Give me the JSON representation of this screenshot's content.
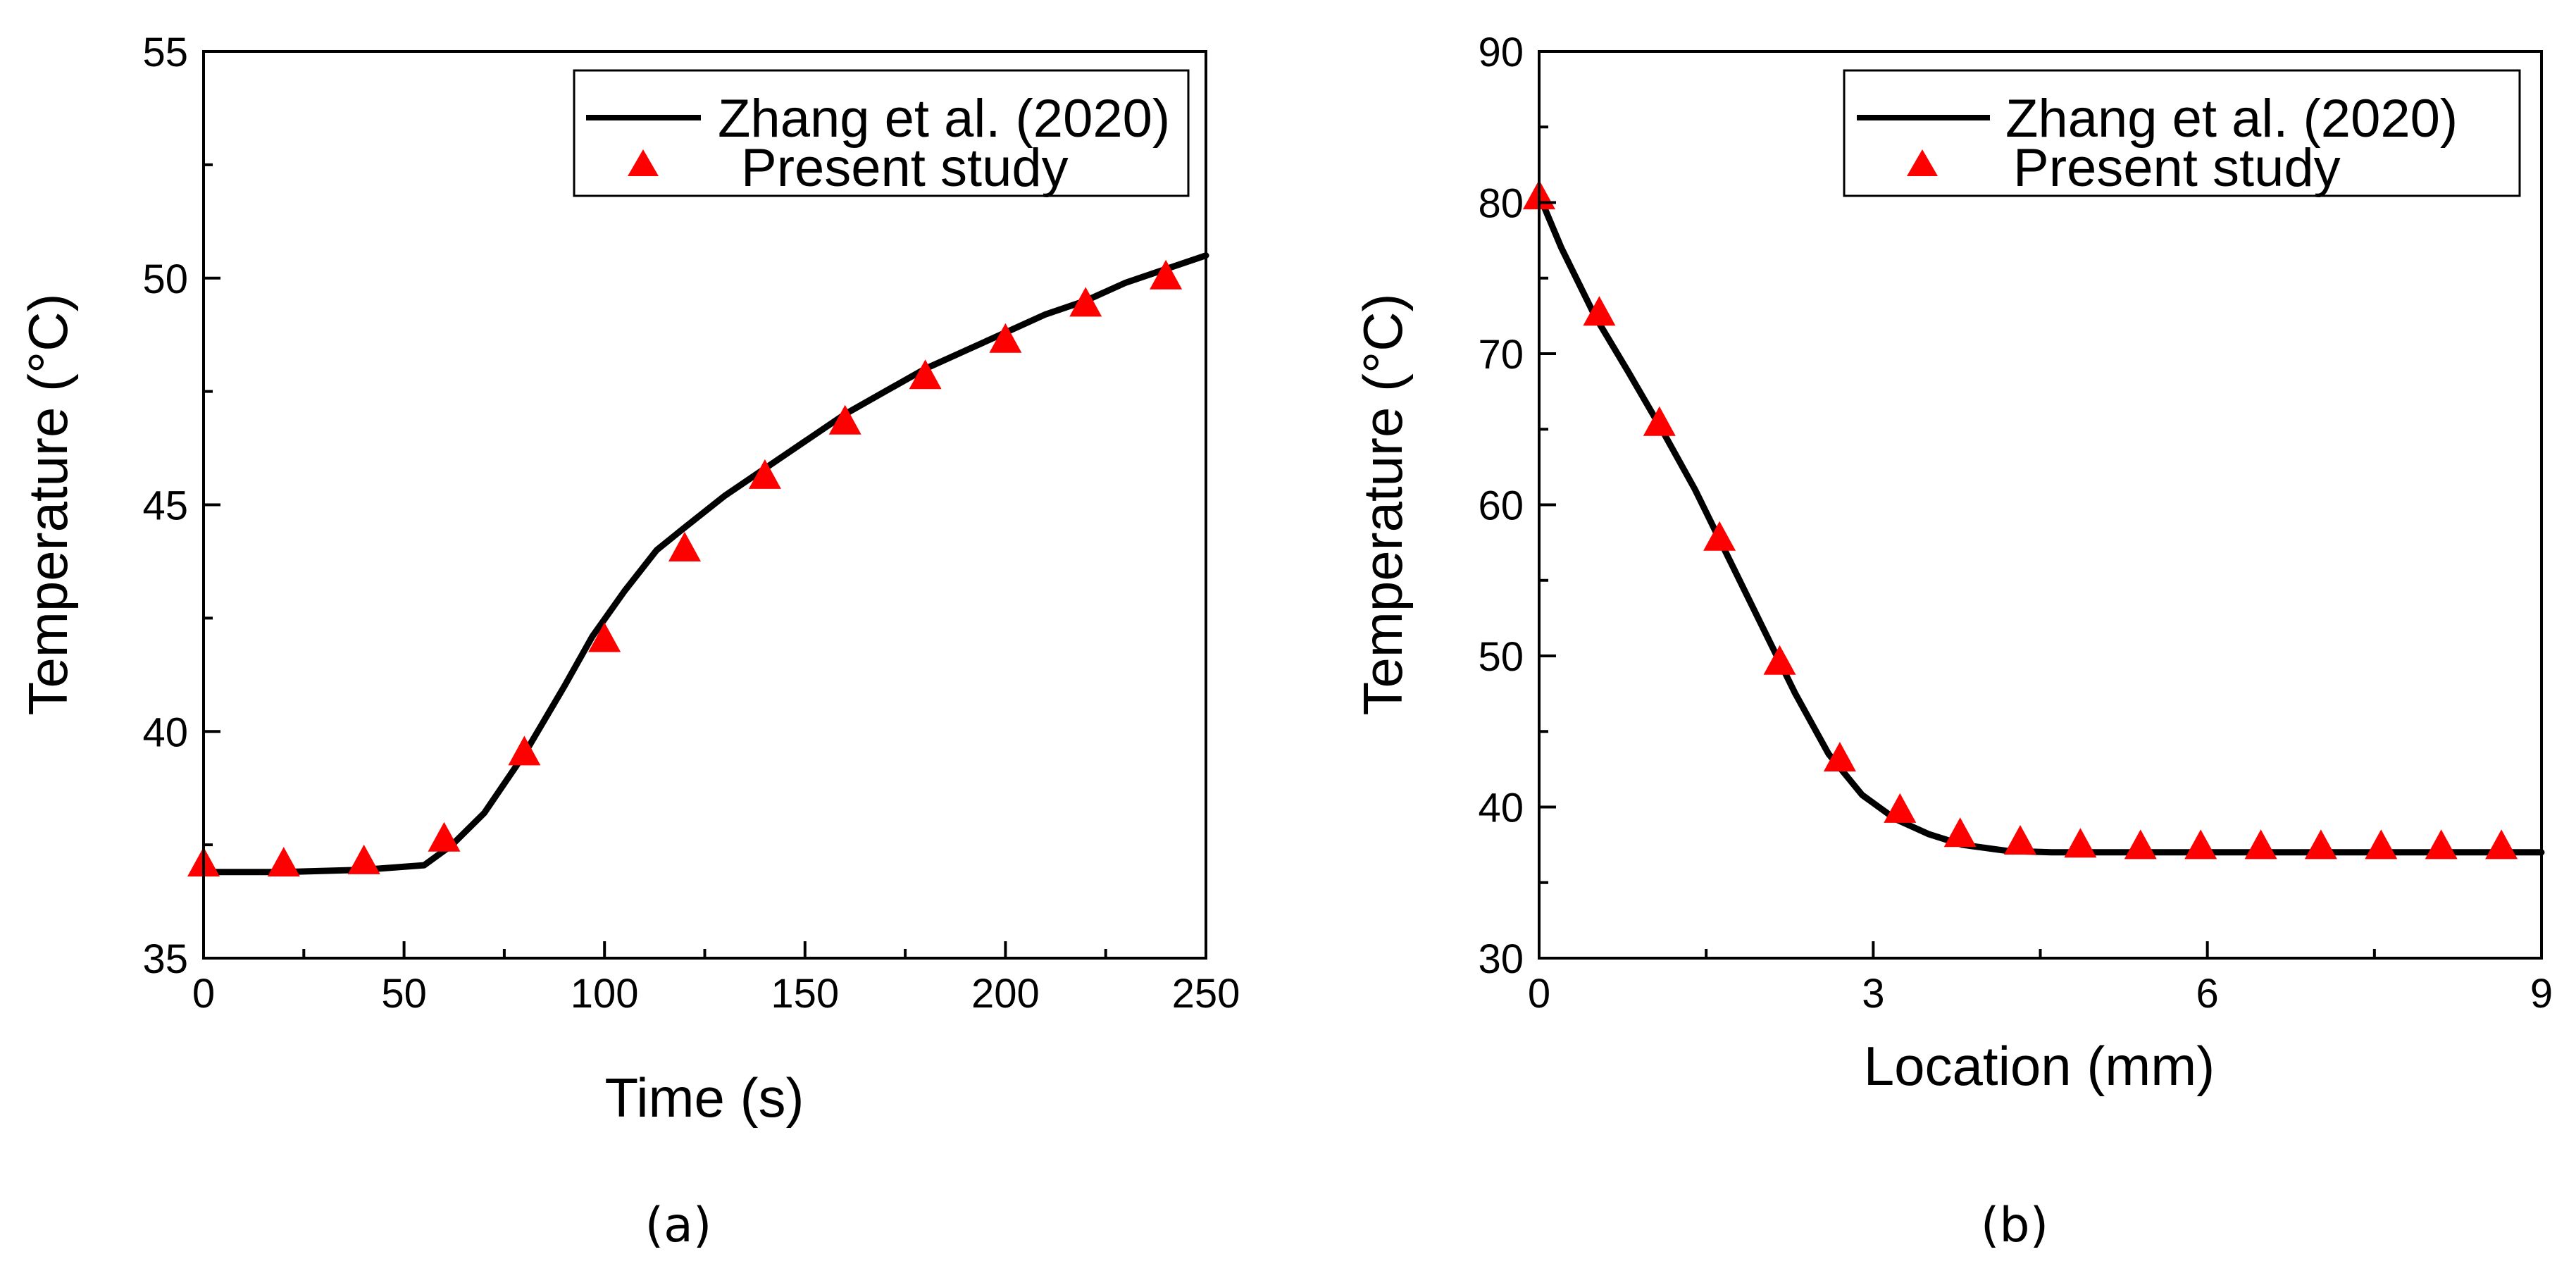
{
  "chart_data": [
    {
      "type": "line",
      "panel_label": "(a)",
      "xlabel": "Time (s)",
      "ylabel": "Temperature (°C)",
      "xlim": [
        0,
        250
      ],
      "ylim": [
        35,
        55
      ],
      "xticks": [
        0,
        50,
        100,
        150,
        200,
        250
      ],
      "yticks": [
        35,
        40,
        45,
        50,
        55
      ],
      "grid": false,
      "legend_position": "top-right",
      "series": [
        {
          "name": "Zhang et al. (2020)",
          "style": "line",
          "color": "#000000",
          "x": [
            0,
            20,
            40,
            55,
            62,
            70,
            80,
            90,
            97,
            105,
            113,
            120,
            130,
            140,
            150,
            160,
            170,
            180,
            190,
            200,
            210,
            220,
            230,
            240,
            250
          ],
          "y": [
            36.9,
            36.9,
            36.95,
            37.05,
            37.5,
            38.2,
            39.5,
            41.0,
            42.1,
            43.1,
            44.0,
            44.5,
            45.2,
            45.8,
            46.4,
            47.0,
            47.5,
            48.0,
            48.4,
            48.8,
            49.2,
            49.5,
            49.9,
            50.2,
            50.5
          ]
        },
        {
          "name": "Present study",
          "style": "marker-triangle",
          "color": "#ff0000",
          "x": [
            0,
            20,
            40,
            60,
            80,
            100,
            120,
            140,
            160,
            180,
            200,
            220,
            240
          ],
          "y": [
            37.05,
            37.05,
            37.1,
            37.6,
            39.5,
            42.0,
            44.0,
            45.6,
            46.8,
            47.8,
            48.6,
            49.4,
            50.0
          ]
        }
      ]
    },
    {
      "type": "line",
      "panel_label": "(b)",
      "xlabel": "Location (mm)",
      "ylabel": "Temperature (°C)",
      "xlim": [
        0,
        9
      ],
      "ylim": [
        30,
        90
      ],
      "xticks": [
        0,
        3,
        6,
        9
      ],
      "yticks": [
        30,
        40,
        50,
        60,
        70,
        80,
        90
      ],
      "grid": false,
      "legend_position": "top-right",
      "series": [
        {
          "name": "Zhang et al. (2020)",
          "style": "line",
          "color": "#000000",
          "x": [
            0,
            0.2,
            0.5,
            0.8,
            1.1,
            1.4,
            1.7,
            2.0,
            2.3,
            2.6,
            2.9,
            3.2,
            3.5,
            3.8,
            4.2,
            4.6,
            5.0,
            6.0,
            7.0,
            8.0,
            9.0
          ],
          "y": [
            80.5,
            77.0,
            72.5,
            68.8,
            65.0,
            61.0,
            56.5,
            52.0,
            47.5,
            43.5,
            40.8,
            39.2,
            38.2,
            37.5,
            37.1,
            37.0,
            37.0,
            37.0,
            37.0,
            37.0,
            37.0
          ]
        },
        {
          "name": "Present study",
          "style": "marker-triangle",
          "color": "#ff0000",
          "x": [
            0,
            0.54,
            1.08,
            1.62,
            2.16,
            2.7,
            3.24,
            3.78,
            4.32,
            4.86,
            5.4,
            5.94,
            6.48,
            7.02,
            7.56,
            8.1,
            8.64
          ],
          "y": [
            80.3,
            72.6,
            65.3,
            57.7,
            49.5,
            43.1,
            39.7,
            38.1,
            37.6,
            37.4,
            37.3,
            37.3,
            37.3,
            37.3,
            37.3,
            37.3,
            37.3
          ]
        }
      ]
    }
  ]
}
